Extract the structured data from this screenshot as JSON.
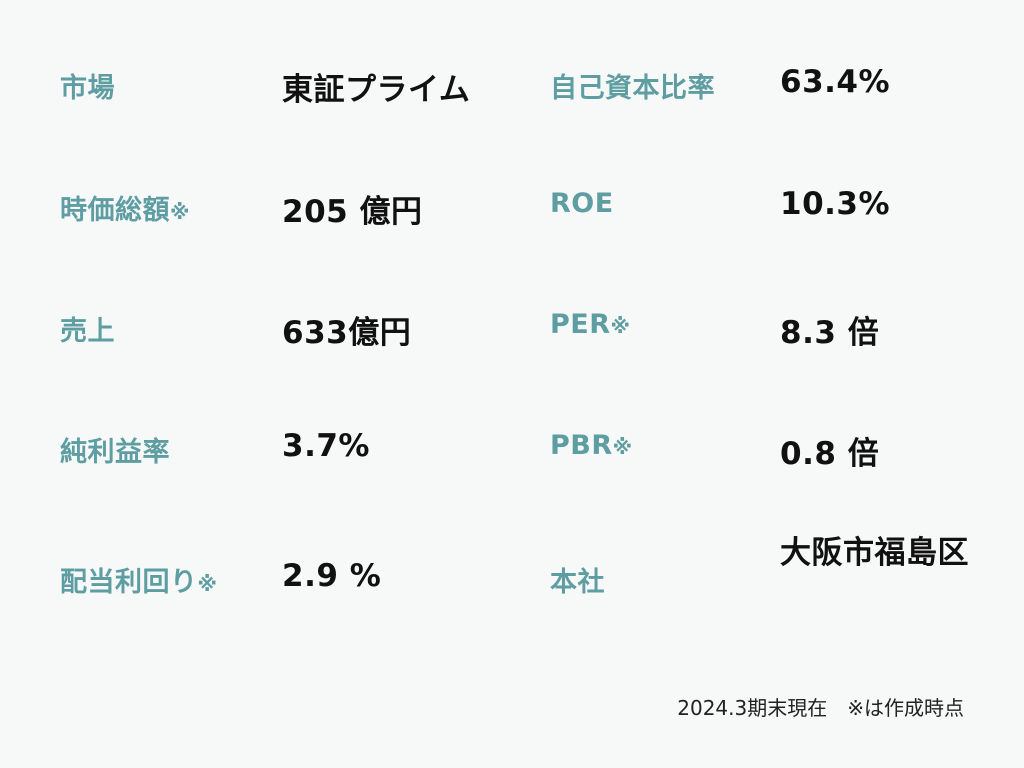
{
  "left": [
    {
      "label": "市場",
      "mark": "",
      "value": "東証プライム"
    },
    {
      "label": "時価総額",
      "mark": "※",
      "value": "205 億円"
    },
    {
      "label": "売上",
      "mark": "",
      "value": "633億円"
    },
    {
      "label": "純利益率",
      "mark": "",
      "value": "3.7%"
    },
    {
      "label": "配当利回り",
      "mark": "※",
      "value": "2.9 %"
    }
  ],
  "right": [
    {
      "label": "自己資本比率",
      "mark": "",
      "value": "63.4%"
    },
    {
      "label": "ROE",
      "mark": "",
      "value": "10.3%"
    },
    {
      "label": "PER",
      "mark": "※",
      "value": "8.3 倍"
    },
    {
      "label": "PBR",
      "mark": "※",
      "value": "0.8 倍"
    },
    {
      "label": "本社",
      "mark": "",
      "value": "大阪市福島区"
    }
  ],
  "footnote": "2024.3期末現在　※は作成時点"
}
